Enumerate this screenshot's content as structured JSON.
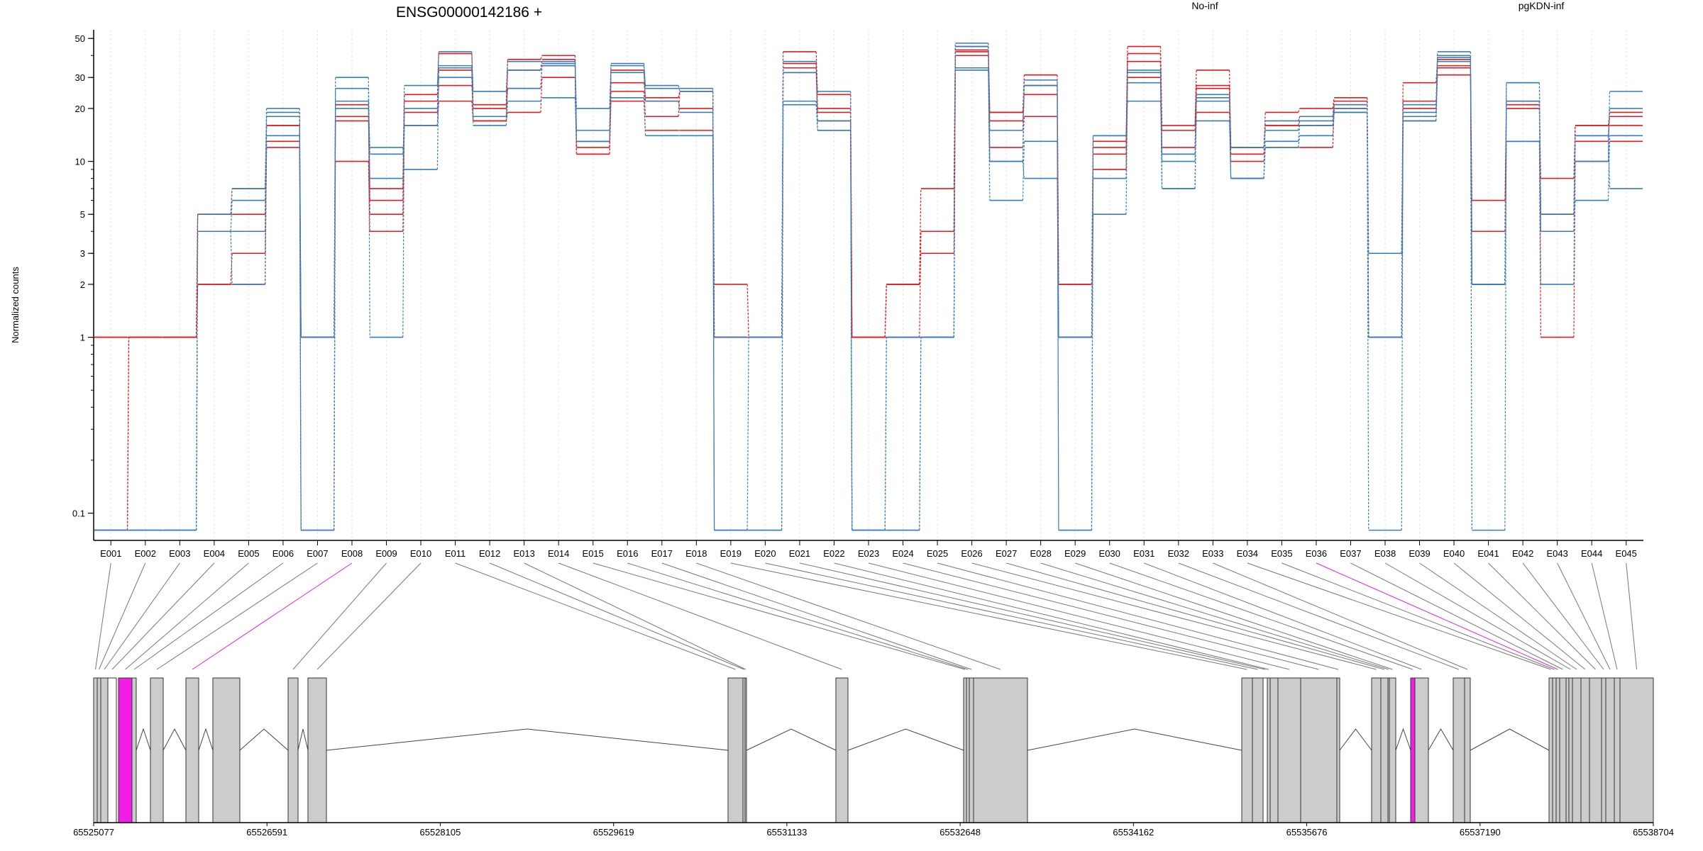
{
  "chart_data": {
    "type": "line",
    "title": "ENSG00000142186 +",
    "ylabel": "Normalized counts",
    "xlabel": "",
    "y_scale": "log",
    "yticks": [
      0.1,
      1,
      2,
      3,
      5,
      10,
      20,
      30,
      50
    ],
    "ylim": [
      0.07,
      56
    ],
    "categories": [
      "E001",
      "E002",
      "E003",
      "E004",
      "E005",
      "E006",
      "E007",
      "E008",
      "E009",
      "E010",
      "E011",
      "E012",
      "E013",
      "E014",
      "E015",
      "E016",
      "E017",
      "E018",
      "E019",
      "E020",
      "E021",
      "E022",
      "E023",
      "E024",
      "E025",
      "E026",
      "E027",
      "E028",
      "E029",
      "E030",
      "E031",
      "E032",
      "E033",
      "E034",
      "E035",
      "E036",
      "E037",
      "E038",
      "E039",
      "E040",
      "E041",
      "E042",
      "E043",
      "E044",
      "E045"
    ],
    "legend": [
      {
        "name": "No-inf",
        "color": "#e41a1c"
      },
      {
        "name": "pgKDN-inf",
        "color": "#377eb8"
      }
    ],
    "series": [
      {
        "group": "No-inf",
        "color": "#e41a1c",
        "values": [
          1,
          1,
          1,
          2,
          3,
          12,
          1,
          10,
          4,
          16,
          22,
          17,
          19,
          30,
          11,
          22,
          15,
          15,
          2,
          1,
          32,
          17,
          1,
          2,
          3,
          40,
          12,
          18,
          1,
          9,
          30,
          11,
          19,
          10,
          12,
          12,
          20,
          1,
          17,
          31,
          2,
          13,
          1,
          10,
          13
        ]
      },
      {
        "group": "No-inf",
        "color": "#e41a1c",
        "values": [
          0.08,
          1,
          1,
          5,
          5,
          16,
          1,
          21,
          5,
          19,
          27,
          20,
          26,
          35,
          12,
          25,
          18,
          25,
          1,
          1,
          34,
          20,
          1,
          2,
          4,
          42,
          17,
          24,
          1,
          12,
          41,
          15,
          27,
          12,
          16,
          16,
          21,
          1,
          22,
          35,
          4,
          22,
          5,
          16,
          16
        ]
      },
      {
        "group": "No-inf",
        "color": "#e41a1c",
        "values": [
          1,
          1,
          1,
          5,
          7,
          16,
          0.08,
          18,
          6,
          24,
          41,
          21,
          38,
          40,
          13,
          28,
          23,
          25,
          1,
          1,
          42,
          24,
          1,
          2,
          7,
          45,
          19,
          31,
          2,
          13,
          45,
          16,
          33,
          11,
          19,
          20,
          23,
          3,
          28,
          38,
          6,
          20,
          8,
          16,
          19
        ]
      },
      {
        "group": "No-inf",
        "color": "#e41a1c",
        "values": [
          0.08,
          1,
          1,
          2,
          2,
          13,
          1,
          17,
          7,
          22,
          33,
          17,
          33,
          38,
          11,
          33,
          22,
          20,
          1,
          1,
          36,
          19,
          1,
          1,
          4,
          43,
          19,
          27,
          2,
          11,
          37,
          12,
          26,
          12,
          16,
          18,
          22,
          1,
          20,
          34,
          2,
          21,
          5,
          13,
          18
        ]
      },
      {
        "group": "pgKDN-inf",
        "color": "#377eb8",
        "values": [
          0.08,
          0.08,
          0.08,
          4,
          4,
          19,
          0.08,
          30,
          8,
          27,
          42,
          25,
          33,
          35,
          20,
          35,
          27,
          25,
          1,
          1,
          32,
          25,
          0.08,
          0.08,
          1,
          47,
          10,
          29,
          0.08,
          14,
          32,
          7,
          22,
          8,
          13,
          16,
          19,
          3,
          19,
          42,
          0.08,
          28,
          4,
          10,
          25
        ]
      },
      {
        "group": "pgKDN-inf",
        "color": "#377eb8",
        "values": [
          0.08,
          0.08,
          0.08,
          5,
          7,
          20,
          1,
          26,
          1,
          20,
          35,
          25,
          37,
          37,
          15,
          36,
          26,
          26,
          0.08,
          1,
          37,
          15,
          0.08,
          0.08,
          1,
          45,
          15,
          27,
          0.08,
          8,
          33,
          10,
          23,
          8,
          17,
          18,
          21,
          1,
          21,
          39,
          2,
          28,
          5,
          14,
          20
        ]
      },
      {
        "group": "pgKDN-inf",
        "color": "#377eb8",
        "values": [
          0.08,
          0.08,
          0.08,
          4,
          2,
          14,
          0.08,
          22,
          11,
          16,
          30,
          18,
          26,
          36,
          13,
          32,
          22,
          19,
          0.08,
          0.08,
          22,
          17,
          0.08,
          1,
          1,
          34,
          6,
          13,
          1,
          5,
          28,
          7,
          24,
          12,
          15,
          17,
          20,
          0.08,
          18,
          40,
          2,
          22,
          2,
          14,
          7
        ]
      },
      {
        "group": "pgKDN-inf",
        "color": "#377eb8",
        "values": [
          0.08,
          0.08,
          0.08,
          4,
          6,
          18,
          1,
          20,
          12,
          9,
          34,
          16,
          22,
          23,
          13,
          23,
          14,
          14,
          0.08,
          0.08,
          21,
          15,
          0.08,
          1,
          1,
          33,
          10,
          8,
          1,
          14,
          22,
          11,
          17,
          8,
          12,
          14,
          19,
          1,
          17,
          37,
          2,
          13,
          4,
          6,
          14
        ]
      }
    ],
    "gene_model": {
      "coordinate_ticks": [
        "65525077",
        "65526591",
        "65528105",
        "65529619",
        "65531133",
        "65532648",
        "65534162",
        "65535676",
        "65537190",
        "65538704"
      ],
      "highlighted_exons": [
        "E008",
        "E036"
      ]
    }
  }
}
